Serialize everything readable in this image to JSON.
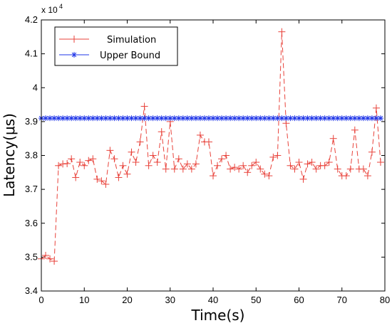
{
  "chart_data": {
    "type": "line",
    "title": "",
    "xlabel": "Time(s)",
    "ylabel": "Latency(μs)",
    "y_exponent_label": "x 10",
    "y_exponent_power": "4",
    "xlim": [
      0,
      80
    ],
    "ylim": [
      3.4,
      4.2
    ],
    "x_ticks": [
      "0",
      "10",
      "20",
      "30",
      "40",
      "50",
      "60",
      "70",
      "80"
    ],
    "y_ticks": [
      "3.4",
      "3.5",
      "3.6",
      "3.7",
      "3.8",
      "3.9",
      "4",
      "4.1",
      "4.2"
    ],
    "grid": false,
    "legend_position": "top-left",
    "series": [
      {
        "name": "Simulation",
        "color": "#e8423a",
        "line_style": "dashed",
        "marker": "plus",
        "x": [
          0,
          1,
          2,
          3,
          4,
          5,
          6,
          7,
          8,
          9,
          10,
          11,
          12,
          13,
          14,
          15,
          16,
          17,
          18,
          19,
          20,
          21,
          22,
          23,
          24,
          25,
          26,
          27,
          28,
          29,
          30,
          31,
          32,
          33,
          34,
          35,
          36,
          37,
          38,
          39,
          40,
          41,
          42,
          43,
          44,
          45,
          46,
          47,
          48,
          49,
          50,
          51,
          52,
          53,
          54,
          55,
          56,
          57,
          58,
          59,
          60,
          61,
          62,
          63,
          64,
          65,
          66,
          67,
          68,
          69,
          70,
          71,
          72,
          73,
          74,
          75,
          76,
          77,
          78,
          79
        ],
        "values": [
          3.495,
          3.505,
          3.495,
          3.488,
          3.77,
          3.775,
          3.776,
          3.79,
          3.735,
          3.78,
          3.77,
          3.785,
          3.79,
          3.73,
          3.725,
          3.715,
          3.815,
          3.79,
          3.735,
          3.77,
          3.745,
          3.81,
          3.78,
          3.84,
          3.945,
          3.77,
          3.8,
          3.78,
          3.87,
          3.76,
          3.9,
          3.76,
          3.79,
          3.76,
          3.775,
          3.76,
          3.775,
          3.86,
          3.84,
          3.84,
          3.74,
          3.77,
          3.79,
          3.8,
          3.76,
          3.765,
          3.76,
          3.77,
          3.75,
          3.77,
          3.78,
          3.76,
          3.745,
          3.74,
          3.795,
          3.8,
          4.165,
          3.895,
          3.77,
          3.76,
          3.78,
          3.73,
          3.775,
          3.78,
          3.76,
          3.77,
          3.77,
          3.78,
          3.85,
          3.76,
          3.74,
          3.74,
          3.76,
          3.875,
          3.76,
          3.76,
          3.74,
          3.81,
          3.94,
          3.78
        ]
      },
      {
        "name": "Upper Bound",
        "color": "#1f35e8",
        "line_style": "solid",
        "marker": "star",
        "x": [
          0,
          1,
          2,
          3,
          4,
          5,
          6,
          7,
          8,
          9,
          10,
          11,
          12,
          13,
          14,
          15,
          16,
          17,
          18,
          19,
          20,
          21,
          22,
          23,
          24,
          25,
          26,
          27,
          28,
          29,
          30,
          31,
          32,
          33,
          34,
          35,
          36,
          37,
          38,
          39,
          40,
          41,
          42,
          43,
          44,
          45,
          46,
          47,
          48,
          49,
          50,
          51,
          52,
          53,
          54,
          55,
          56,
          57,
          58,
          59,
          60,
          61,
          62,
          63,
          64,
          65,
          66,
          67,
          68,
          69,
          70,
          71,
          72,
          73,
          74,
          75,
          76,
          77,
          78,
          79
        ],
        "values": [
          3.91,
          3.91,
          3.91,
          3.91,
          3.91,
          3.91,
          3.91,
          3.91,
          3.91,
          3.91,
          3.91,
          3.91,
          3.91,
          3.91,
          3.91,
          3.91,
          3.91,
          3.91,
          3.91,
          3.91,
          3.91,
          3.91,
          3.91,
          3.91,
          3.91,
          3.91,
          3.91,
          3.91,
          3.91,
          3.91,
          3.91,
          3.91,
          3.91,
          3.91,
          3.91,
          3.91,
          3.91,
          3.91,
          3.91,
          3.91,
          3.91,
          3.91,
          3.91,
          3.91,
          3.91,
          3.91,
          3.91,
          3.91,
          3.91,
          3.91,
          3.91,
          3.91,
          3.91,
          3.91,
          3.91,
          3.91,
          3.91,
          3.91,
          3.91,
          3.91,
          3.91,
          3.91,
          3.91,
          3.91,
          3.91,
          3.91,
          3.91,
          3.91,
          3.91,
          3.91,
          3.91,
          3.91,
          3.91,
          3.91,
          3.91,
          3.91,
          3.91,
          3.91,
          3.91,
          3.91
        ]
      }
    ]
  }
}
